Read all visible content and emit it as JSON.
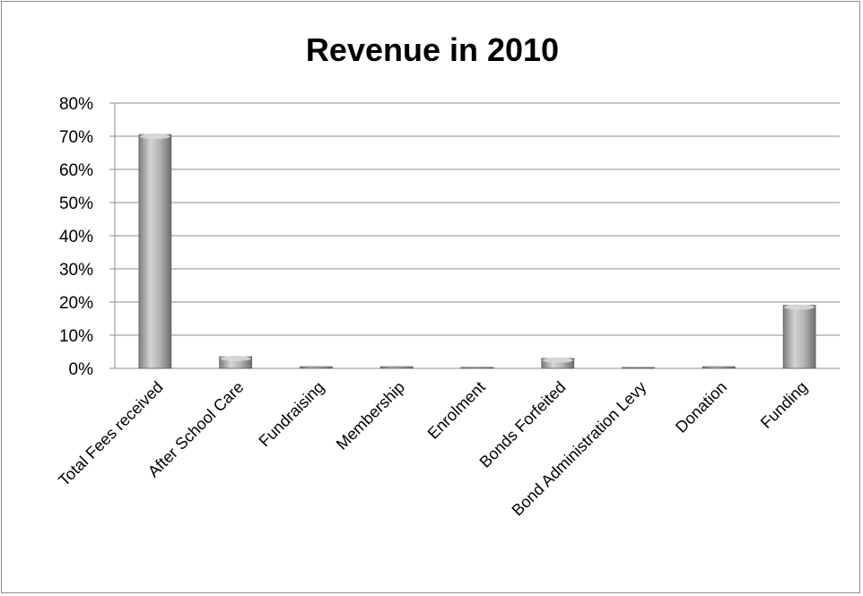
{
  "chart_data": {
    "type": "bar",
    "title": "Revenue in 2010",
    "xlabel": "",
    "ylabel": "",
    "ylim": [
      0,
      0.8
    ],
    "y_ticks": [
      "0%",
      "10%",
      "20%",
      "30%",
      "40%",
      "50%",
      "60%",
      "70%",
      "80%"
    ],
    "y_tick_values": [
      0,
      0.1,
      0.2,
      0.3,
      0.4,
      0.5,
      0.6,
      0.7,
      0.8
    ],
    "categories": [
      "Total Fees received",
      "After School Care",
      "Fundraising",
      "Membership",
      "Enrolment",
      "Bonds Forfeited",
      "Bond Administration Levy",
      "Donation",
      "Funding"
    ],
    "values": [
      0.705,
      0.035,
      0.005,
      0.005,
      0.003,
      0.03,
      0.001,
      0.005,
      0.19
    ],
    "grid": true,
    "legend": "none",
    "colors": {
      "bar_fill": "#9a9a9a",
      "bar_highlight": "#d8d8d8",
      "grid": "#8c8c8c",
      "frame": "#8c8c8c"
    }
  }
}
